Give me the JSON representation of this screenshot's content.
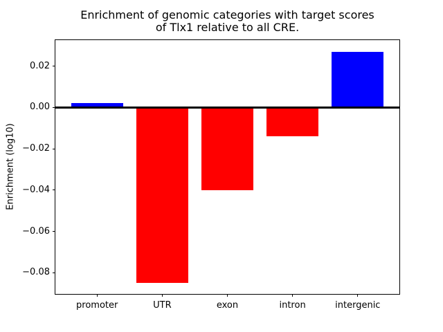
{
  "figure": {
    "background_color": "#ffffff",
    "axis_color": "#000000",
    "text_color": "#000000"
  },
  "chart_data": {
    "type": "bar",
    "title": "Enrichment of genomic categories with target scores\nof Tlx1 relative to all CRE.",
    "title_lines": [
      "Enrichment of genomic categories with target scores",
      "of Tlx1 relative to all CRE."
    ],
    "xlabel": "",
    "ylabel": "Enrichment (log10)",
    "categories": [
      "promoter",
      "UTR",
      "exon",
      "intron",
      "intergenic"
    ],
    "values": [
      0.002,
      -0.085,
      -0.04,
      -0.014,
      0.027
    ],
    "bar_colors": [
      "#0000ff",
      "#ff0000",
      "#ff0000",
      "#ff0000",
      "#0000ff"
    ],
    "positive_color": "#0000ff",
    "negative_color": "#ff0000",
    "ylim": [
      -0.0903,
      0.0326
    ],
    "yticks": [
      0.02,
      0.0,
      -0.02,
      -0.04,
      -0.06,
      -0.08
    ],
    "ytick_labels": [
      "0.02",
      "0.00",
      "−0.02",
      "−0.04",
      "−0.06",
      "−0.08"
    ],
    "bar_width_fraction": 0.8,
    "zero_line": true,
    "grid": false,
    "legend": "none"
  }
}
